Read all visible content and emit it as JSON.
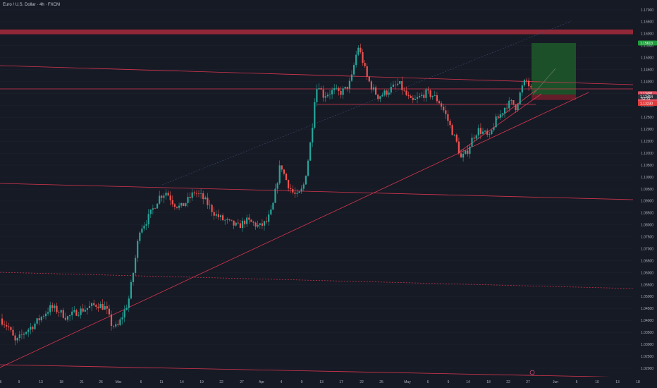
{
  "header": {
    "symbol_title": "Euro / U.S. Dollar · 4h · FXCM"
  },
  "price_tags": {
    "target": "1.15613",
    "current": "1.13491",
    "countdown": "52:31",
    "entry": "1.13454",
    "stop": "1.13230"
  },
  "colors": {
    "background": "#161a25",
    "up_candle": "#26a69a",
    "down_candle": "#ef5350",
    "trendline": "#d8364f",
    "resistance_zone": "#9e2a3b",
    "target_zone": "#1d5b2a",
    "stop_zone": "#6e1e2a",
    "grid": "#1f2330"
  },
  "chart_data": {
    "type": "candlestick",
    "title": "Euro / U.S. Dollar · 4h · FXCM",
    "timeframe": "4h",
    "x_tick_labels": [
      "6",
      "9",
      "13",
      "18",
      "21",
      "26",
      "Mar",
      "6",
      "11",
      "14",
      "19",
      "22",
      "27",
      "Apr",
      "4",
      "9",
      "13",
      "17",
      "22",
      "25",
      "May",
      "6",
      "9",
      "14",
      "18",
      "22",
      "27",
      "Jun",
      "5",
      "10",
      "13",
      "18"
    ],
    "y_tick_labels": [
      "1.17000",
      "1.16500",
      "1.16000",
      "1.15500",
      "1.15000",
      "1.14500",
      "1.14000",
      "1.13500",
      "1.13000",
      "1.12500",
      "1.12000",
      "1.11500",
      "1.11000",
      "1.10500",
      "1.10000",
      "1.09500",
      "1.09000",
      "1.08500",
      "1.08000",
      "1.07500",
      "1.07000",
      "1.06500",
      "1.06000",
      "1.05500",
      "1.05000",
      "1.04500",
      "1.04000",
      "1.03500",
      "1.03000",
      "1.02500",
      "1.02000"
    ],
    "ylim": [
      1.0175,
      1.1725
    ],
    "close_path": [
      [
        0,
        1.0408
      ],
      [
        12,
        1.0372
      ],
      [
        22,
        1.0308
      ],
      [
        35,
        1.0352
      ],
      [
        48,
        1.0382
      ],
      [
        62,
        1.0425
      ],
      [
        72,
        1.0455
      ],
      [
        84,
        1.0438
      ],
      [
        95,
        1.0412
      ],
      [
        108,
        1.0435
      ],
      [
        120,
        1.0448
      ],
      [
        138,
        1.0468
      ],
      [
        150,
        1.0452
      ],
      [
        158,
        1.0385
      ],
      [
        166,
        1.0368
      ],
      [
        174,
        1.0422
      ],
      [
        182,
        1.0478
      ],
      [
        190,
        1.0618
      ],
      [
        198,
        1.0782
      ],
      [
        208,
        1.0818
      ],
      [
        218,
        1.0872
      ],
      [
        226,
        1.0918
      ],
      [
        236,
        1.0938
      ],
      [
        246,
        1.0892
      ],
      [
        256,
        1.0872
      ],
      [
        266,
        1.0902
      ],
      [
        276,
        1.0938
      ],
      [
        286,
        1.0918
      ],
      [
        296,
        1.0882
      ],
      [
        306,
        1.0842
      ],
      [
        316,
        1.0822
      ],
      [
        326,
        1.0808
      ],
      [
        338,
        1.0792
      ],
      [
        348,
        1.0818
      ],
      [
        358,
        1.0808
      ],
      [
        368,
        1.0792
      ],
      [
        378,
        1.0812
      ],
      [
        386,
        1.0862
      ],
      [
        392,
        1.0962
      ],
      [
        398,
        1.1058
      ],
      [
        404,
        1.1002
      ],
      [
        410,
        1.0962
      ],
      [
        416,
        1.0932
      ],
      [
        422,
        1.0918
      ],
      [
        430,
        1.0955
      ],
      [
        436,
        1.1052
      ],
      [
        442,
        1.1182
      ],
      [
        447,
        1.1352
      ],
      [
        452,
        1.1392
      ],
      [
        458,
        1.1342
      ],
      [
        466,
        1.1352
      ],
      [
        474,
        1.1362
      ],
      [
        482,
        1.1352
      ],
      [
        490,
        1.1368
      ],
      [
        498,
        1.1402
      ],
      [
        503,
        1.1482
      ],
      [
        508,
        1.1548
      ],
      [
        514,
        1.1492
      ],
      [
        520,
        1.1422
      ],
      [
        528,
        1.1372
      ],
      [
        536,
        1.1338
      ],
      [
        546,
        1.1352
      ],
      [
        556,
        1.1372
      ],
      [
        566,
        1.1392
      ],
      [
        574,
        1.1352
      ],
      [
        584,
        1.1312
      ],
      [
        594,
        1.1332
      ],
      [
        604,
        1.1352
      ],
      [
        614,
        1.1342
      ],
      [
        624,
        1.1312
      ],
      [
        632,
        1.1262
      ],
      [
        640,
        1.1202
      ],
      [
        648,
        1.1142
      ],
      [
        654,
        1.1078
      ],
      [
        662,
        1.1102
      ],
      [
        670,
        1.1162
      ],
      [
        678,
        1.1198
      ],
      [
        688,
        1.1182
      ],
      [
        694,
        1.1162
      ],
      [
        702,
        1.1232
      ],
      [
        710,
        1.1262
      ],
      [
        718,
        1.1302
      ],
      [
        726,
        1.1312
      ],
      [
        732,
        1.1292
      ],
      [
        740,
        1.1372
      ],
      [
        746,
        1.1408
      ],
      [
        752,
        1.1372
      ],
      [
        756,
        1.1349
      ]
    ],
    "levels": {
      "resistance_zone": [
        1.1598,
        1.1618
      ],
      "target": 1.15613,
      "current": 1.13491,
      "entry": 1.13454,
      "stop": 1.1323
    },
    "grid": false,
    "legend": "none"
  }
}
